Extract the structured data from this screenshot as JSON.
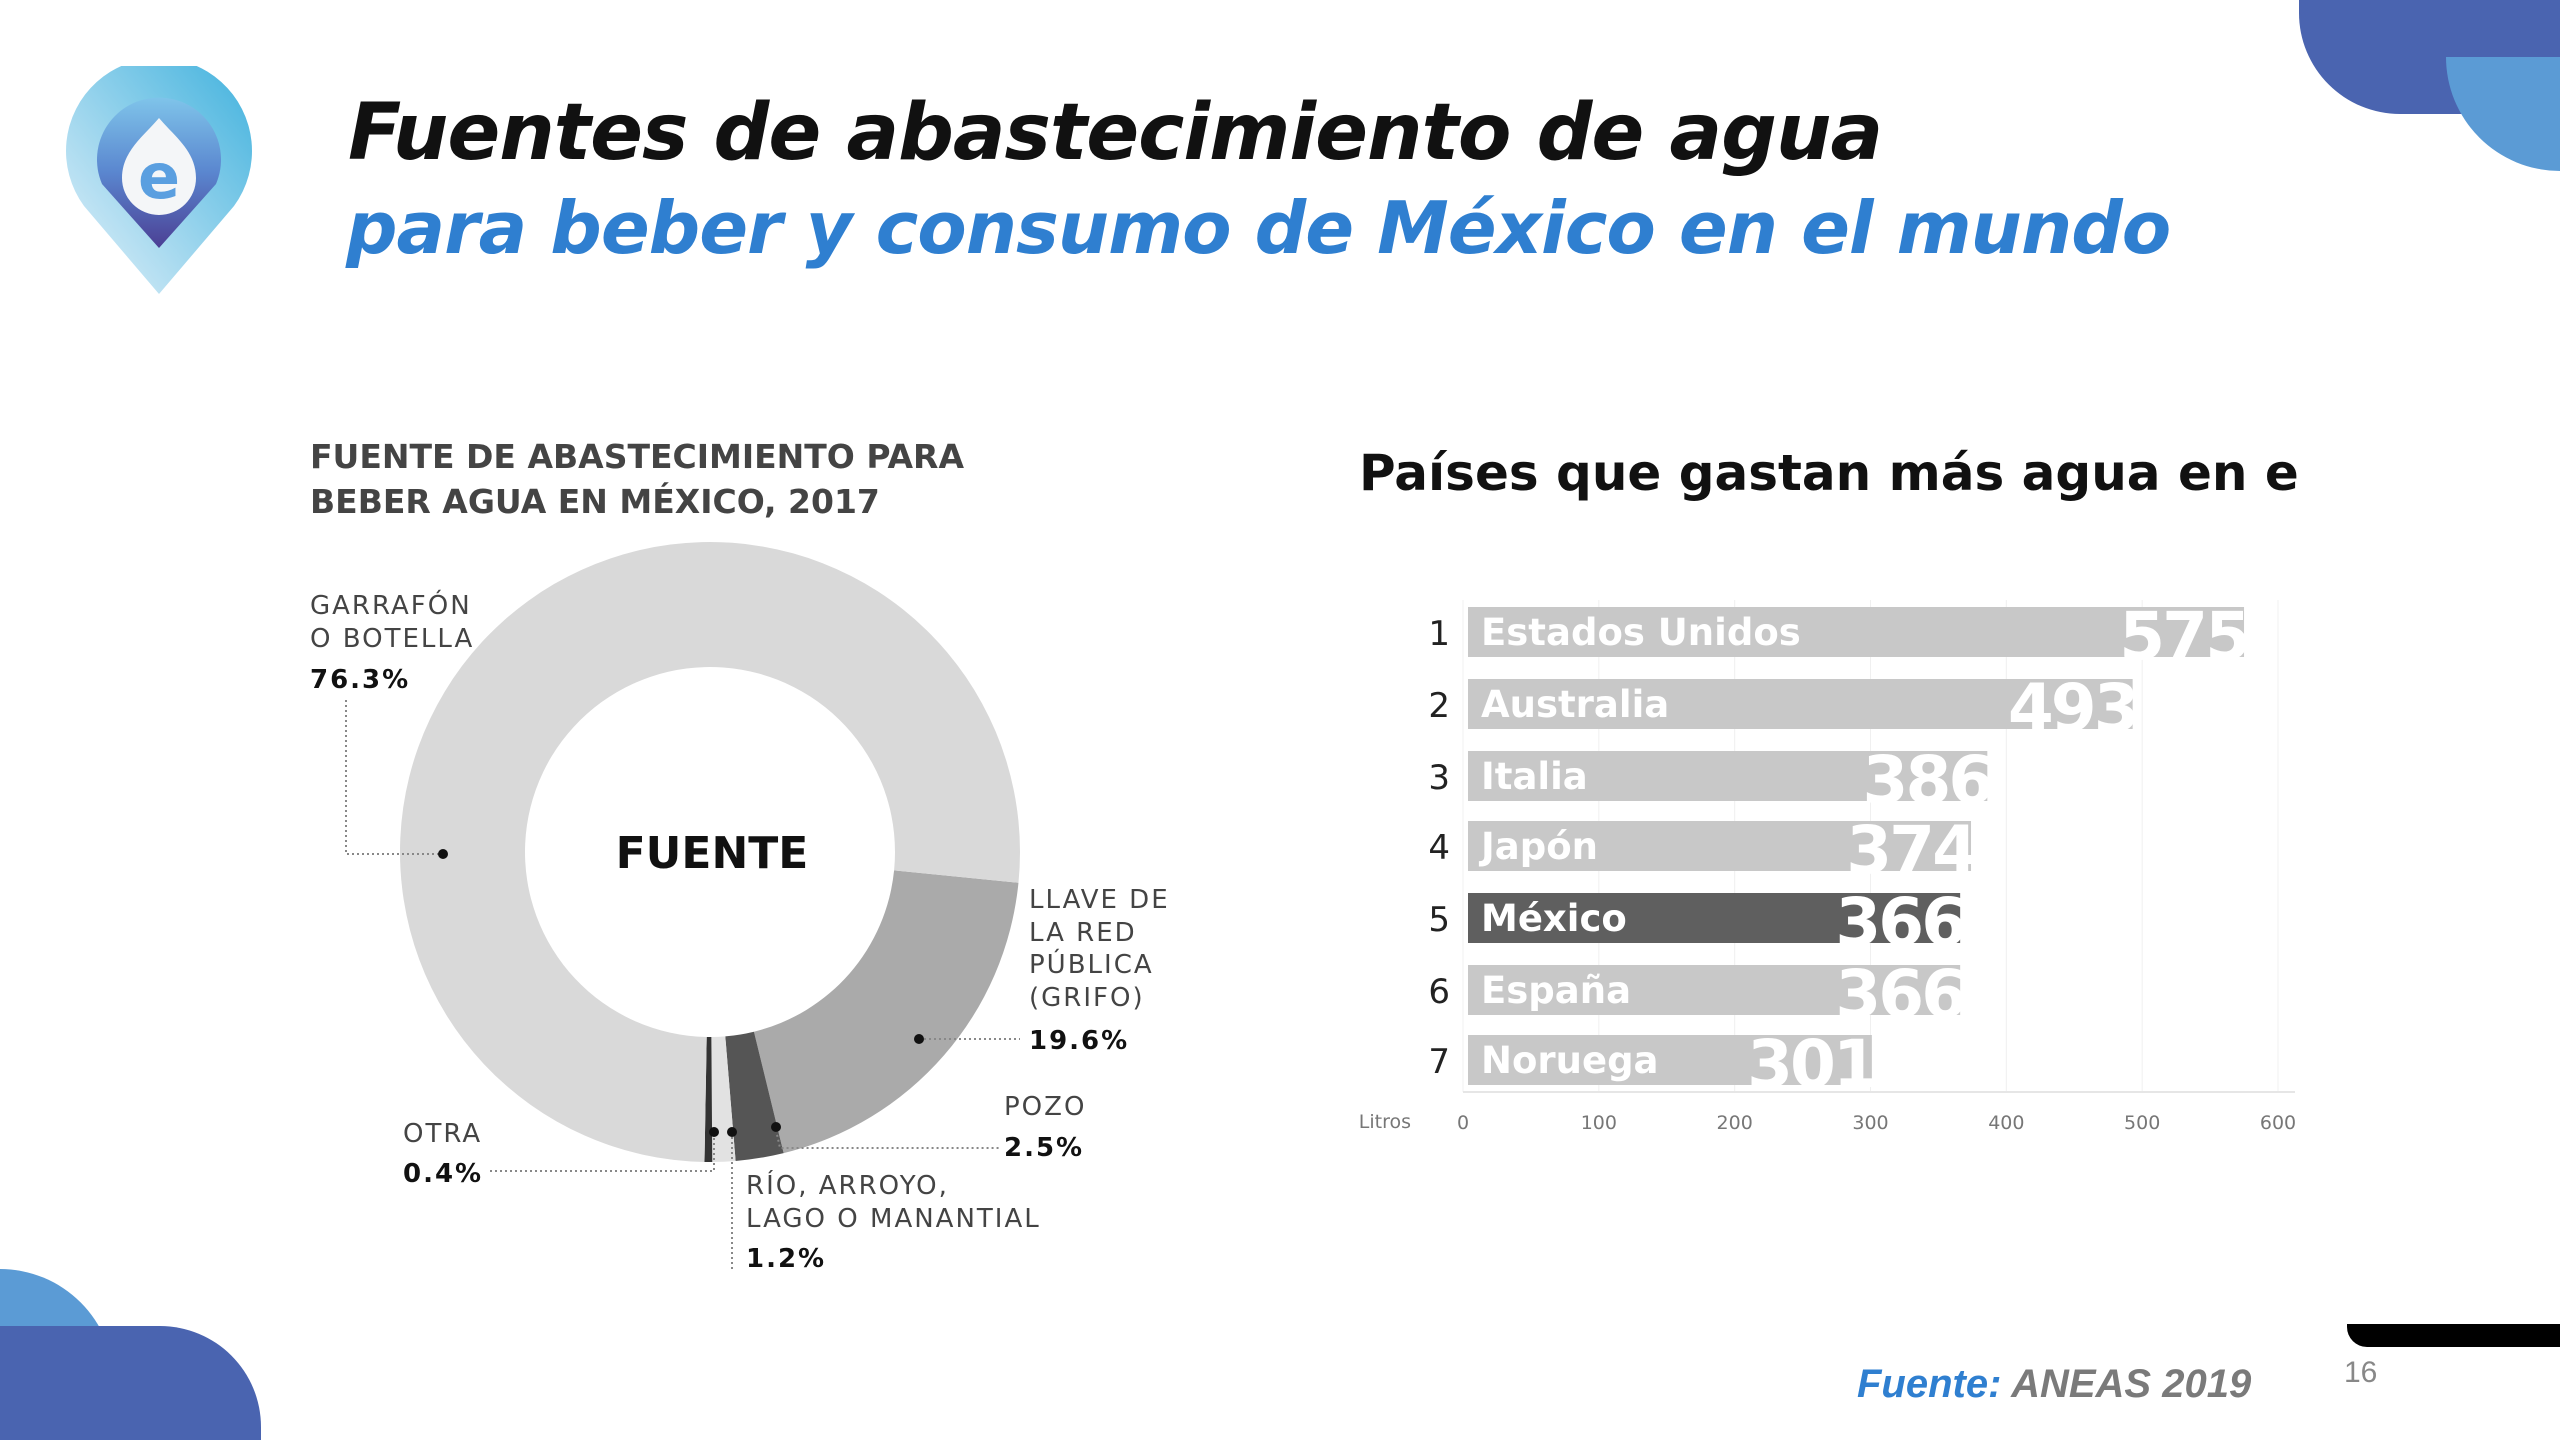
{
  "header": {
    "title_line1": "Fuentes de abastecimiento de agua",
    "title_line2": "para beber y consumo de México en el mundo"
  },
  "logo": {
    "letter": "e"
  },
  "footer": {
    "source_label": "Fuente:",
    "source_value": "ANEAS 2019",
    "page_number": "16"
  },
  "colors": {
    "accent_blue": "#2f7fd0",
    "deco_dark": "#4a64b0",
    "deco_light": "#5b9bd5"
  },
  "chart_data": [
    {
      "type": "pie",
      "title_line1": "FUENTE DE ABASTECIMIENTO PARA",
      "title_line2": "BEBER AGUA EN MÉXICO, 2017",
      "center_label": "FUENTE",
      "slices": [
        {
          "label_lines": [
            "LLAVE DE",
            "LA RED",
            "PÚBLICA",
            "(GRIFO)"
          ],
          "value": 19.6,
          "value_label": "19.6%",
          "color": "#aaaaaa"
        },
        {
          "label_lines": [
            "POZO"
          ],
          "value": 2.5,
          "value_label": "2.5%",
          "color": "#555555"
        },
        {
          "label_lines": [
            "RÍO, ARROYO,",
            "LAGO O MANANTIAL"
          ],
          "value": 1.2,
          "value_label": "1.2%",
          "color": "#e2e2e2"
        },
        {
          "label_lines": [
            "OTRA"
          ],
          "value": 0.4,
          "value_label": "0.4%",
          "color": "#333333"
        },
        {
          "label_lines": [
            "GARRAFÓN",
            "O BOTELLA"
          ],
          "value": 76.3,
          "value_label": "76.3%",
          "color": "#d9d9d9"
        }
      ]
    },
    {
      "type": "bar",
      "orientation": "horizontal",
      "title": "Países que gastan más agua en el mundo",
      "xlabel": "Litros",
      "xlim": [
        0,
        600
      ],
      "xticks": [
        0,
        100,
        200,
        300,
        400,
        500,
        600
      ],
      "ranks": [
        "1",
        "2",
        "3",
        "4",
        "5",
        "6",
        "7"
      ],
      "categories": [
        "Estados Unidos",
        "Australia",
        "Italia",
        "Japón",
        "México",
        "España",
        "Noruega"
      ],
      "values": [
        575,
        493,
        386,
        374,
        366,
        366,
        301
      ],
      "highlight": "México",
      "bar_color": "#c8c8c8",
      "highlight_color": "#5f5f5f"
    }
  ]
}
